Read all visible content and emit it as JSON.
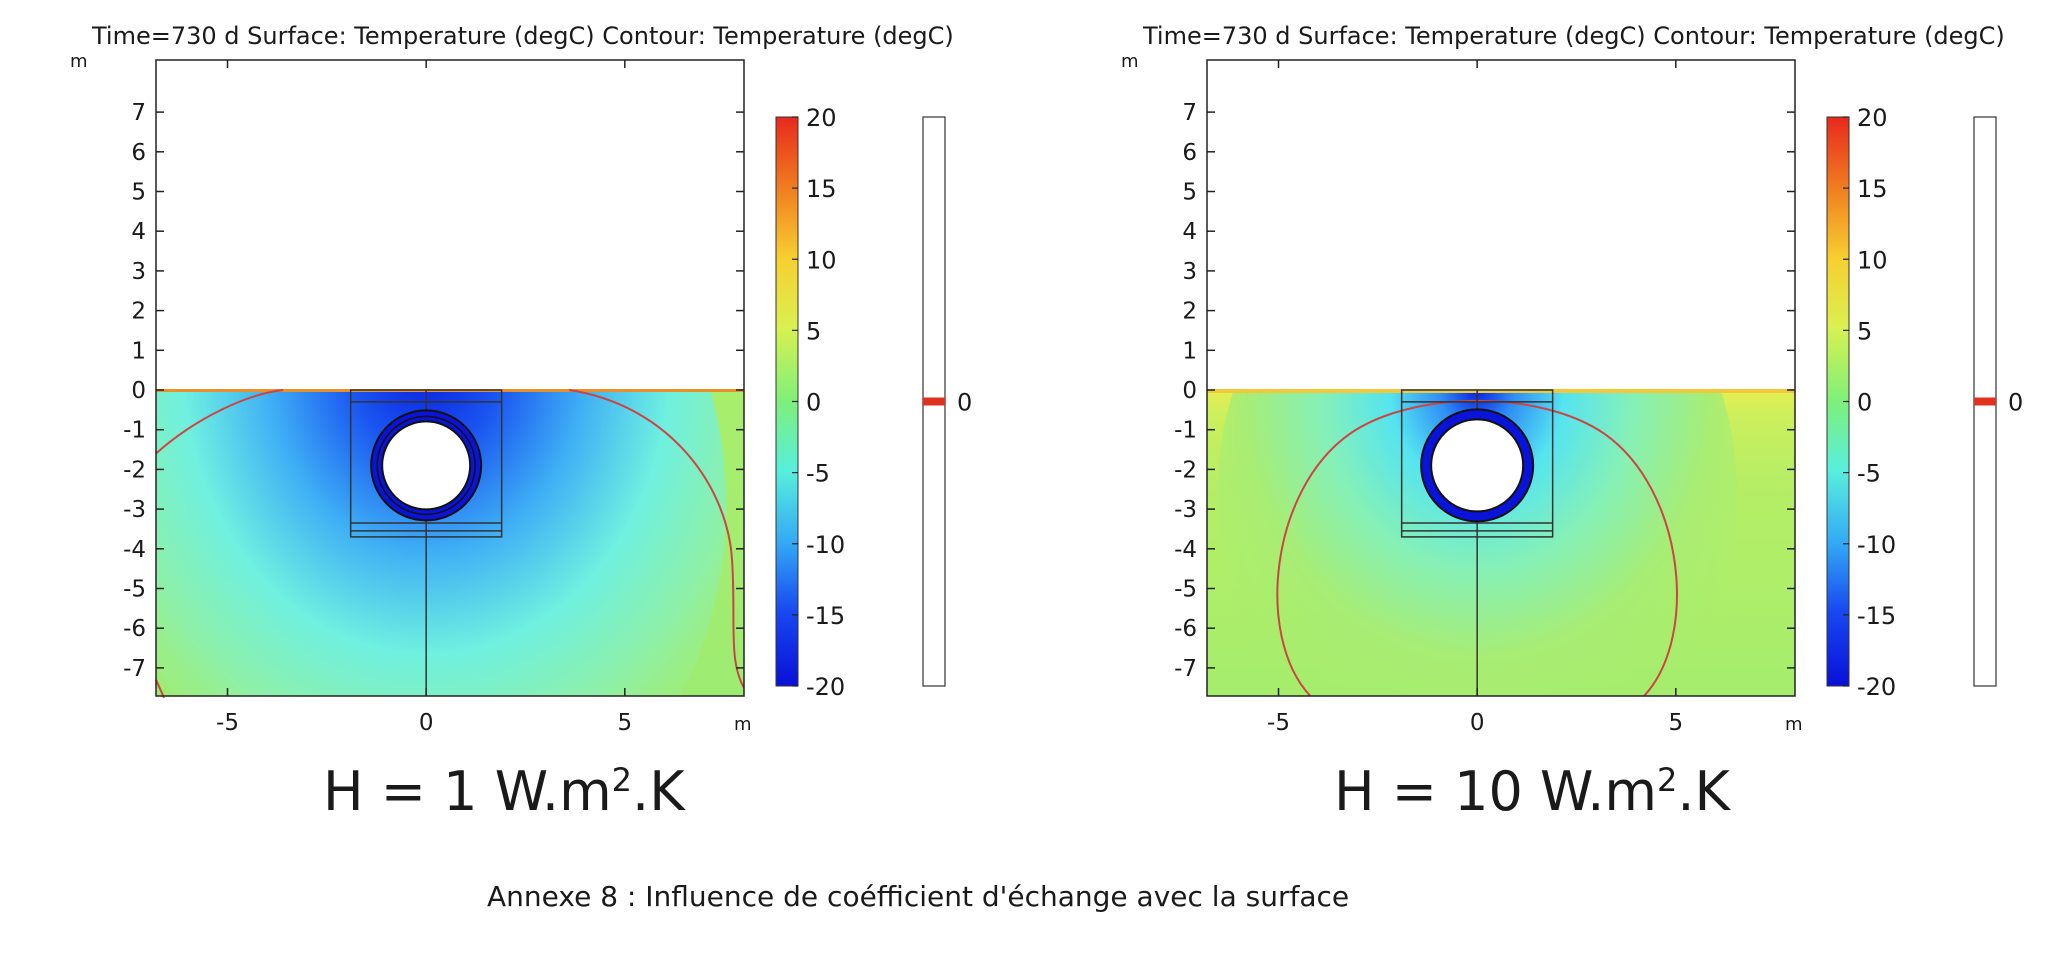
{
  "caption": "Annexe 8 : Influence de coéfficient d'échange avec la surface",
  "chart_data": [
    {
      "type": "heatmap",
      "title": "Time=730 d   Surface: Temperature (degC)   Contour: Temperature (degC)",
      "time": "Time=730 d",
      "surface_label": "Surface: Temperature (degC)",
      "contour_label": "Contour: Temperature (degC)",
      "xlabel": "m",
      "ylabel": "m",
      "xlim": [
        -6.8,
        8
      ],
      "ylim": [
        -7.8,
        8.3
      ],
      "xticks": [
        -5,
        0,
        5
      ],
      "yticks": [
        7,
        6,
        5,
        4,
        3,
        2,
        1,
        0,
        -1,
        -2,
        -3,
        -4,
        -5,
        -6,
        -7
      ],
      "colorbar": {
        "min": -20,
        "max": 20,
        "ticks": [
          20,
          15,
          10,
          5,
          0,
          -5,
          -10,
          -15,
          -20
        ]
      },
      "contour_levels": [
        0
      ],
      "surface_temperature_at_ground": 0,
      "heat_transfer_coefficient": 1,
      "label_prefix": "H = 1 W.m",
      "label_sup": "2",
      "label_suffix": ".K",
      "annotation": "H = 1 W.m2.K"
    },
    {
      "type": "heatmap",
      "title": "Time=730 d   Surface: Temperature (degC)   Contour: Temperature (degC)",
      "time": "Time=730 d",
      "surface_label": "Surface: Temperature (degC)",
      "contour_label": "Contour: Temperature (degC)",
      "xlabel": "m",
      "ylabel": "m",
      "xlim": [
        -6.8,
        8
      ],
      "ylim": [
        -7.8,
        8.3
      ],
      "xticks": [
        -5,
        0,
        5
      ],
      "yticks": [
        7,
        6,
        5,
        4,
        3,
        2,
        1,
        0,
        -1,
        -2,
        -3,
        -4,
        -5,
        -6,
        -7
      ],
      "colorbar": {
        "min": -20,
        "max": 20,
        "ticks": [
          20,
          15,
          10,
          5,
          0,
          -5,
          -10,
          -15,
          -20
        ]
      },
      "contour_levels": [
        0
      ],
      "surface_temperature_at_ground": 7,
      "heat_transfer_coefficient": 10,
      "label_prefix": "H = 10 W.m",
      "label_sup": "2",
      "label_suffix": ".K",
      "annotation": "H = 10 W.m2.K"
    }
  ]
}
